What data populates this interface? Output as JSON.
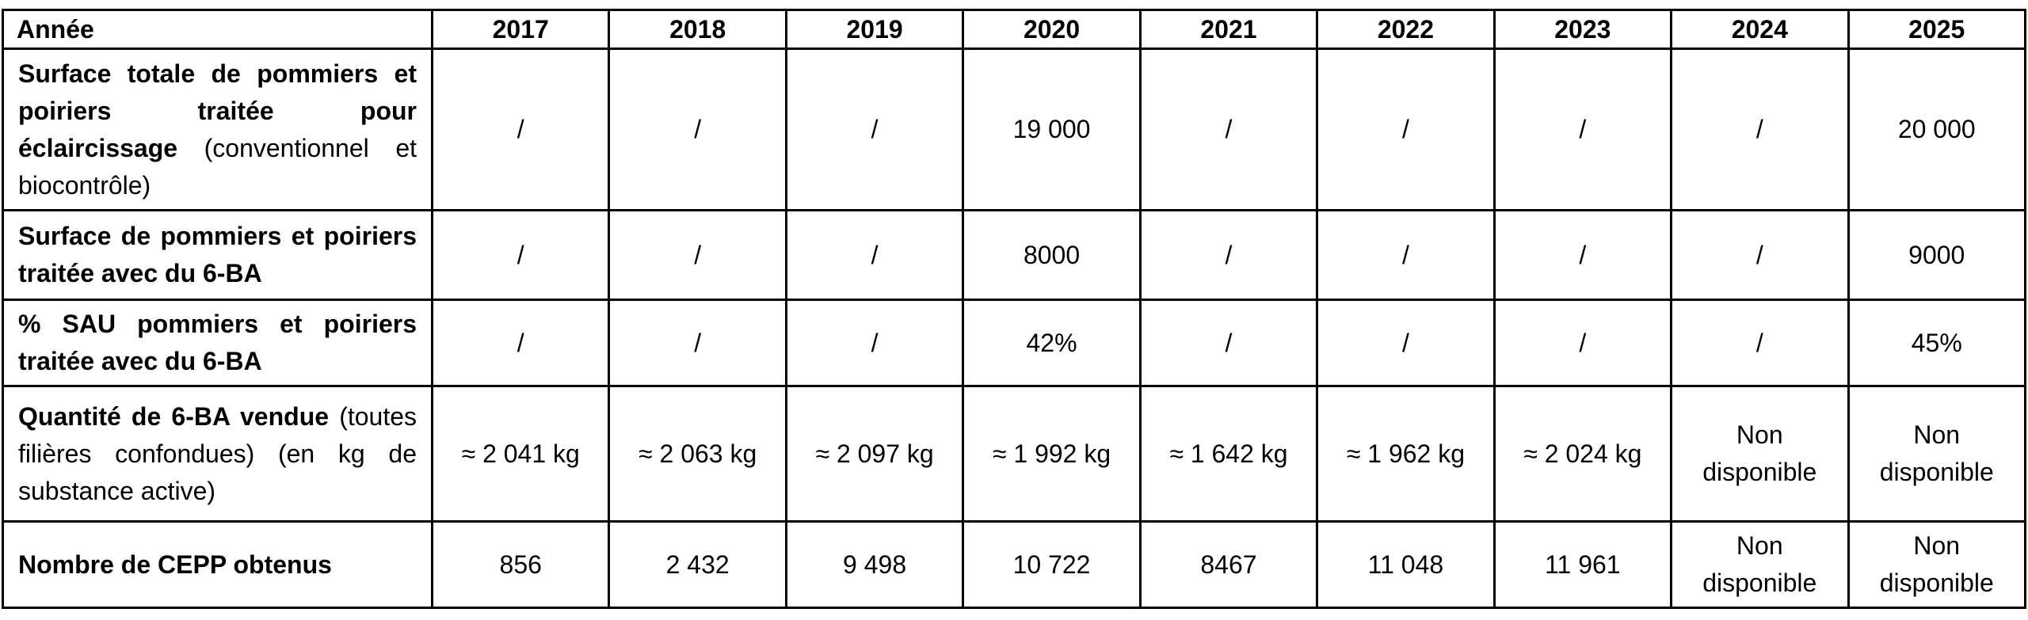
{
  "table": {
    "header": [
      "Année",
      "2017",
      "2018",
      "2019",
      "2020",
      "2021",
      "2022",
      "2023",
      "2024",
      "2025"
    ],
    "rows": [
      {
        "label_bold": "Surface totale de pommiers et poiriers traitée pour éclaircissage",
        "label_rest": "(conventionnel et biocontrôle)",
        "cells": [
          "/",
          "/",
          "/",
          "19 000",
          "/",
          "/",
          "/",
          "/",
          "20 000"
        ]
      },
      {
        "label_bold": "Surface de pommiers et poiriers traitée avec du 6-BA",
        "cells": [
          "/",
          "/",
          "/",
          "8000",
          "/",
          "/",
          "/",
          "/",
          "9000"
        ]
      },
      {
        "label_bold": "% SAU pommiers et poiriers traitée avec du 6-BA",
        "cells": [
          "/",
          "/",
          "/",
          "42%",
          "/",
          "/",
          "/",
          "/",
          "45%"
        ]
      },
      {
        "label_bold": "Quantité de 6-BA vendue",
        "label_rest": "(toutes filières confondues) (en kg de substance active)",
        "cells": [
          "≈ 2 041 kg",
          "≈ 2 063 kg",
          "≈ 2 097 kg",
          "≈ 1 992 kg",
          "≈ 1 642 kg",
          "≈ 1 962 kg",
          "≈ 2 024 kg",
          "Non disponible",
          "Non disponible"
        ]
      },
      {
        "label_bold": "Nombre de CEPP obtenus",
        "cells": [
          "856",
          "2 432",
          "9 498",
          "10 722",
          "8467",
          "11 048",
          "11 961",
          "Non disponible",
          "Non disponible"
        ]
      }
    ]
  }
}
